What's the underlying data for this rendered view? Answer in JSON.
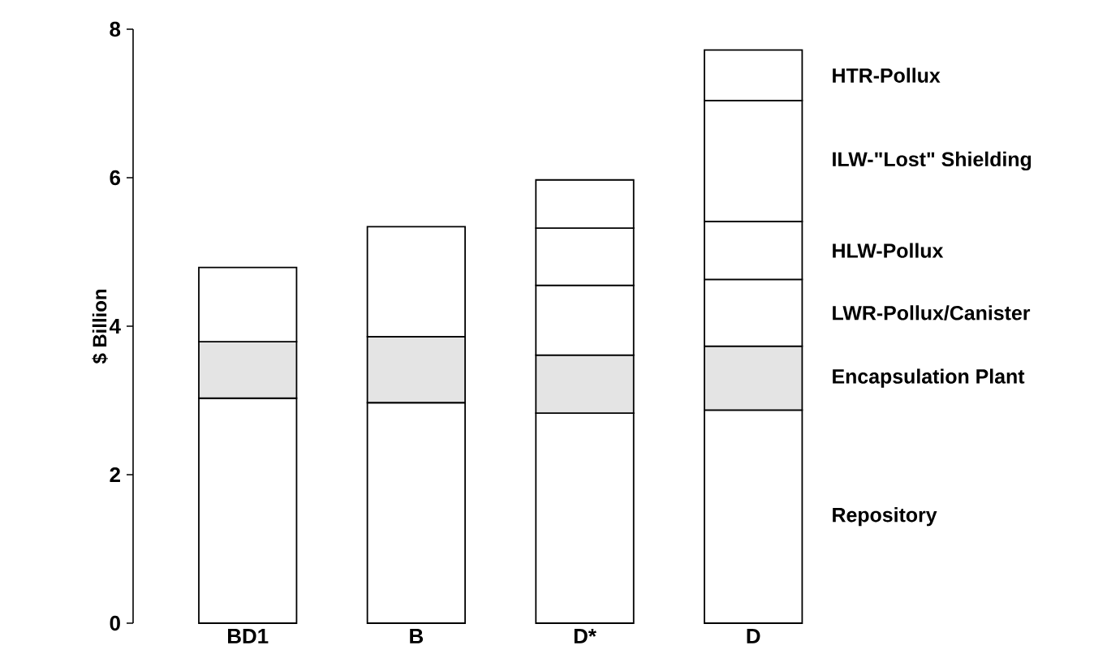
{
  "chart_data": {
    "type": "bar",
    "stacked": true,
    "ylabel": "$ Billion",
    "categories": [
      "BD1",
      "B",
      "D*",
      "D"
    ],
    "ylim": [
      0,
      8
    ],
    "yticks": [
      0,
      2,
      4,
      6,
      8
    ],
    "series": [
      {
        "name": "Repository",
        "color": "#ffffff",
        "values": [
          3.03,
          2.97,
          2.83,
          2.87
        ]
      },
      {
        "name": "Encapsulation Plant",
        "color": "#e4e4e4",
        "values": [
          0.76,
          0.89,
          0.78,
          0.86
        ]
      },
      {
        "name": "LWR-Pollux/Canister",
        "color": "#ffffff",
        "values": [
          1.0,
          1.48,
          0.94,
          0.9
        ]
      },
      {
        "name": "HLW-Pollux",
        "color": "#ffffff",
        "values": [
          null,
          null,
          0.77,
          0.78
        ]
      },
      {
        "name": "ILW-\"Lost\" Shielding",
        "color": "#ffffff",
        "values": [
          null,
          null,
          null,
          1.63
        ]
      },
      {
        "name": "HTR-Pollux",
        "color": "#ffffff",
        "values": [
          null,
          null,
          0.65,
          0.68
        ]
      }
    ]
  }
}
